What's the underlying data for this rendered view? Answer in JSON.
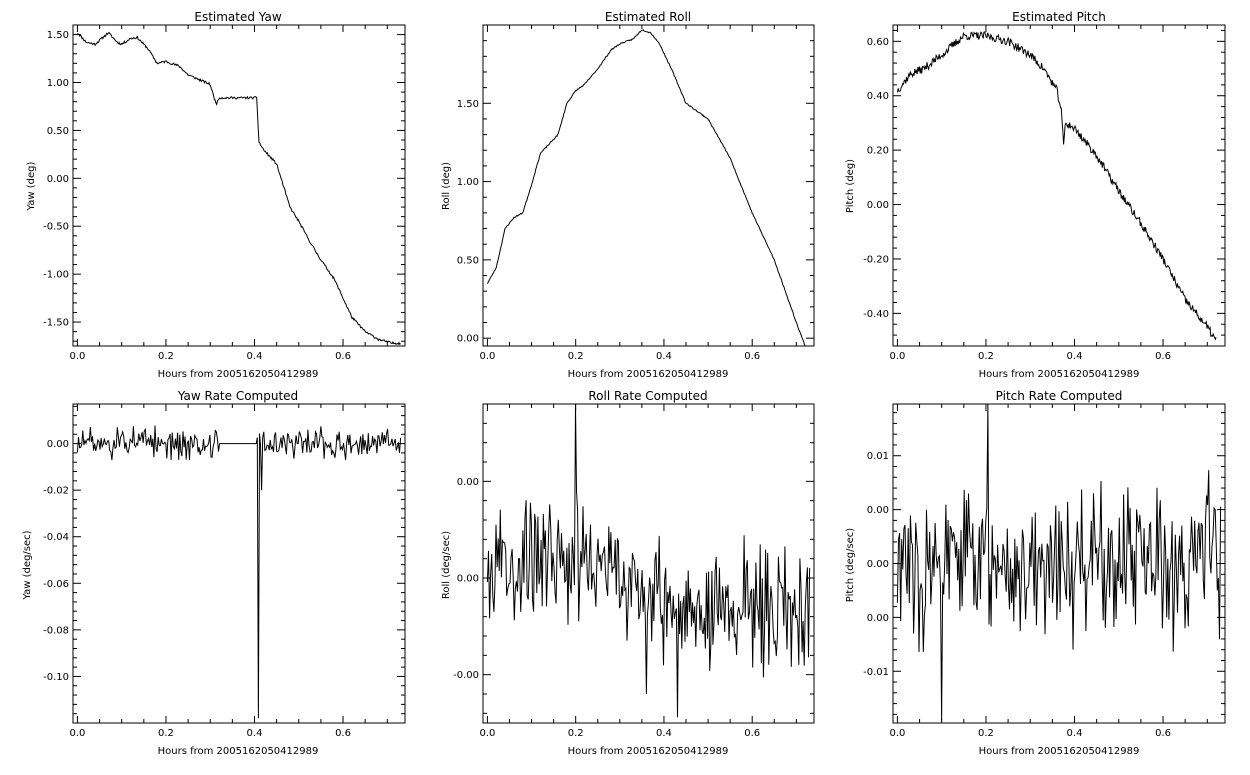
{
  "figure": {
    "background": "#ffffff",
    "line_color": "#000000"
  },
  "chart_data": [
    {
      "id": "yaw",
      "type": "line",
      "title": "Estimated Yaw",
      "xlabel": "Hours from 2005162050412989",
      "ylabel": "Yaw (deg)",
      "xlim": [
        -0.01,
        0.74
      ],
      "ylim": [
        -1.75,
        1.6
      ],
      "xticks": [
        {
          "v": 0,
          "label": "0.0"
        },
        {
          "v": 0.2,
          "label": "0.2"
        },
        {
          "v": 0.4,
          "label": "0.4"
        },
        {
          "v": 0.6,
          "label": "0.6"
        }
      ],
      "yticks": [
        {
          "v": 1.5,
          "label": "1.50"
        },
        {
          "v": 1.0,
          "label": "1.00"
        },
        {
          "v": 0.5,
          "label": "0.50"
        },
        {
          "v": 0.0,
          "label": "0.00"
        },
        {
          "v": -0.5,
          "label": "-0.50"
        },
        {
          "v": -1.0,
          "label": "-1.00"
        },
        {
          "v": -1.5,
          "label": "-1.50"
        }
      ],
      "noise": 0.012,
      "seed": 11,
      "series": [
        {
          "x": [
            0.0,
            0.02,
            0.04,
            0.07,
            0.09,
            0.1,
            0.12,
            0.135,
            0.16,
            0.18,
            0.2,
            0.23,
            0.25,
            0.28,
            0.3,
            0.31,
            0.315,
            0.32,
            0.405,
            0.41,
            0.42,
            0.45,
            0.48,
            0.5,
            0.53,
            0.55,
            0.58,
            0.6,
            0.62,
            0.65,
            0.68,
            0.71,
            0.73
          ],
          "y": [
            1.52,
            1.42,
            1.4,
            1.52,
            1.42,
            1.4,
            1.46,
            1.47,
            1.35,
            1.2,
            1.22,
            1.17,
            1.08,
            1.02,
            0.98,
            0.82,
            0.78,
            0.84,
            0.84,
            0.38,
            0.3,
            0.15,
            -0.3,
            -0.45,
            -0.7,
            -0.85,
            -1.05,
            -1.25,
            -1.45,
            -1.6,
            -1.68,
            -1.72,
            -1.72
          ]
        }
      ]
    },
    {
      "id": "roll",
      "type": "line",
      "title": "Estimated Roll",
      "xlabel": "Hours from 2005162050412989",
      "ylabel": "Roll (deg)",
      "xlim": [
        -0.01,
        0.74
      ],
      "ylim": [
        -0.05,
        2.0
      ],
      "xticks": [
        {
          "v": 0,
          "label": "0.0"
        },
        {
          "v": 0.2,
          "label": "0.2"
        },
        {
          "v": 0.4,
          "label": "0.4"
        },
        {
          "v": 0.6,
          "label": "0.6"
        }
      ],
      "yticks": [
        {
          "v": 1.5,
          "label": "1.50"
        },
        {
          "v": 1.0,
          "label": "1.00"
        },
        {
          "v": 0.5,
          "label": "0.50"
        },
        {
          "v": 0.0,
          "label": "0.00"
        }
      ],
      "noise": 0.004,
      "seed": 23,
      "series": [
        {
          "x": [
            0.0,
            0.02,
            0.04,
            0.06,
            0.08,
            0.1,
            0.12,
            0.14,
            0.16,
            0.18,
            0.2,
            0.22,
            0.25,
            0.28,
            0.3,
            0.33,
            0.35,
            0.37,
            0.39,
            0.42,
            0.45,
            0.5,
            0.55,
            0.6,
            0.65,
            0.7,
            0.72
          ],
          "y": [
            0.35,
            0.45,
            0.7,
            0.77,
            0.8,
            0.98,
            1.18,
            1.24,
            1.3,
            1.5,
            1.58,
            1.62,
            1.72,
            1.84,
            1.88,
            1.91,
            1.97,
            1.95,
            1.88,
            1.7,
            1.5,
            1.4,
            1.15,
            0.8,
            0.5,
            0.1,
            -0.05
          ]
        }
      ]
    },
    {
      "id": "pitch",
      "type": "line",
      "title": "Estimated Pitch",
      "xlabel": "Hours from 2005162050412989",
      "ylabel": "Pitch (deg)",
      "xlim": [
        -0.01,
        0.74
      ],
      "ylim": [
        -0.52,
        0.66
      ],
      "xticks": [
        {
          "v": 0,
          "label": "0.0"
        },
        {
          "v": 0.2,
          "label": "0.2"
        },
        {
          "v": 0.4,
          "label": "0.4"
        },
        {
          "v": 0.6,
          "label": "0.6"
        }
      ],
      "yticks": [
        {
          "v": 0.6,
          "label": "0.60"
        },
        {
          "v": 0.4,
          "label": "0.40"
        },
        {
          "v": 0.2,
          "label": "0.20"
        },
        {
          "v": 0.0,
          "label": "0.00"
        },
        {
          "v": -0.2,
          "label": "-0.20"
        },
        {
          "v": -0.4,
          "label": "-0.40"
        }
      ],
      "noise": 0.015,
      "seed": 37,
      "series": [
        {
          "x": [
            0.0,
            0.03,
            0.06,
            0.1,
            0.15,
            0.2,
            0.25,
            0.3,
            0.33,
            0.36,
            0.37,
            0.375,
            0.38,
            0.4,
            0.45,
            0.5,
            0.55,
            0.6,
            0.65,
            0.7,
            0.72
          ],
          "y": [
            0.42,
            0.48,
            0.5,
            0.55,
            0.62,
            0.62,
            0.6,
            0.55,
            0.5,
            0.42,
            0.35,
            0.22,
            0.3,
            0.28,
            0.18,
            0.05,
            -0.07,
            -0.2,
            -0.35,
            -0.45,
            -0.5
          ]
        }
      ]
    },
    {
      "id": "yaw-rate",
      "type": "line",
      "title": "Yaw Rate Computed",
      "xlabel": "Hours from 2005162050412989",
      "ylabel": "Yaw (deg/sec)",
      "xlim": [
        -0.01,
        0.74
      ],
      "ylim": [
        -0.12,
        0.017
      ],
      "xticks": [
        {
          "v": 0,
          "label": "0.0"
        },
        {
          "v": 0.2,
          "label": "0.2"
        },
        {
          "v": 0.4,
          "label": "0.4"
        },
        {
          "v": 0.6,
          "label": "0.6"
        }
      ],
      "yticks": [
        {
          "v": 0.0,
          "label": "0.00"
        },
        {
          "v": -0.02,
          "label": "-0.02"
        },
        {
          "v": -0.04,
          "label": "-0.04"
        },
        {
          "v": -0.06,
          "label": "-0.06"
        },
        {
          "v": -0.08,
          "label": "-0.08"
        },
        {
          "v": -0.1,
          "label": "-0.10"
        }
      ],
      "noise_amp": 0.006,
      "flat_range": [
        0.32,
        0.405
      ],
      "spikes": [
        {
          "x": 0.41,
          "y": -0.118
        },
        {
          "x": 0.415,
          "y": -0.02
        }
      ],
      "seed": 51,
      "series": [
        {
          "x": [
            0.0,
            0.73
          ],
          "y": [
            0.0,
            0.0
          ]
        }
      ]
    },
    {
      "id": "roll-rate",
      "type": "line",
      "title": "Roll Rate Computed",
      "xlabel": "Hours from 2005162050412989",
      "ylabel": "Roll (deg/sec)",
      "xlim": [
        -0.01,
        0.74
      ],
      "ylim": [
        -0.0075,
        0.009
      ],
      "xticks": [
        {
          "v": 0,
          "label": "0.0"
        },
        {
          "v": 0.2,
          "label": "0.2"
        },
        {
          "v": 0.4,
          "label": "0.4"
        },
        {
          "v": 0.6,
          "label": "0.6"
        }
      ],
      "yticks": [
        {
          "v": 0.005,
          "label": "0.00"
        },
        {
          "v": 0.0,
          "label": "0.00"
        },
        {
          "v": -0.005,
          "label": "-0.00"
        }
      ],
      "noise_amp": 0.0028,
      "spikes": [
        {
          "x": 0.2,
          "y": 0.0092
        },
        {
          "x": 0.43,
          "y": -0.0072
        },
        {
          "x": 0.36,
          "y": -0.006
        }
      ],
      "seed": 67,
      "series": [
        {
          "x": [
            0.0,
            0.2,
            0.4,
            0.73
          ],
          "y": [
            0.0008,
            0.0012,
            -0.0015,
            -0.0015
          ]
        }
      ]
    },
    {
      "id": "pitch-rate",
      "type": "line",
      "title": "Pitch Rate Computed",
      "xlabel": "Hours from 2005162050412989",
      "ylabel": "Pitch (deg/sec)",
      "xlim": [
        -0.01,
        0.74
      ],
      "ylim": [
        -0.0148,
        0.0148
      ],
      "xticks": [
        {
          "v": 0,
          "label": "0.0"
        },
        {
          "v": 0.2,
          "label": "0.2"
        },
        {
          "v": 0.4,
          "label": "0.4"
        },
        {
          "v": 0.6,
          "label": "0.6"
        }
      ],
      "yticks": [
        {
          "v": 0.01,
          "label": "0.01"
        },
        {
          "v": 0.005,
          "label": "0.00"
        },
        {
          "v": 0.0,
          "label": "0.00"
        },
        {
          "v": -0.005,
          "label": "0.00"
        },
        {
          "v": -0.01,
          "label": "-0.01"
        }
      ],
      "noise_amp": 0.0065,
      "spikes": [
        {
          "x": 0.205,
          "y": 0.0148
        },
        {
          "x": 0.1,
          "y": -0.0146
        }
      ],
      "seed": 83,
      "series": [
        {
          "x": [
            0.0,
            0.73
          ],
          "y": [
            0.0,
            0.0
          ]
        }
      ]
    }
  ]
}
